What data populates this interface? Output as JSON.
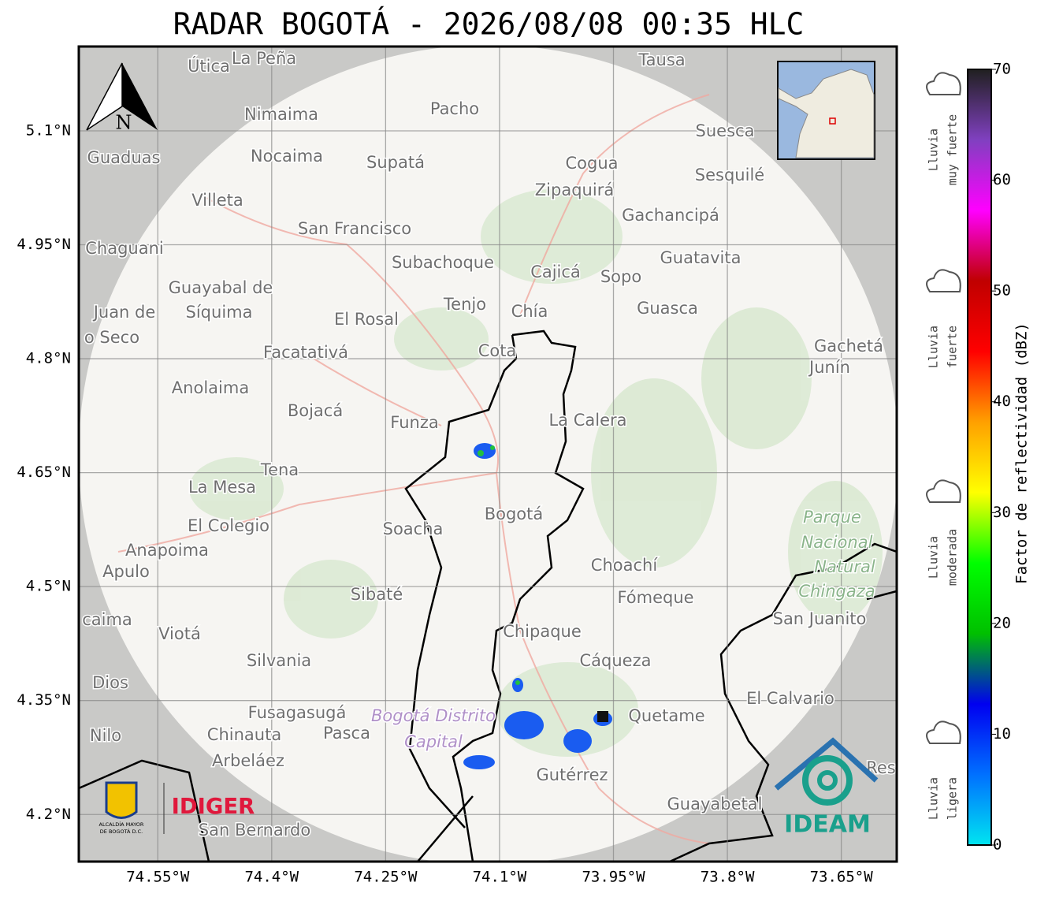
{
  "title": "RADAR BOGOTÁ - 2026/08/08 00:35 HLC",
  "map": {
    "lon_range": [
      -74.654,
      -73.577
    ],
    "lat_range": [
      4.138,
      5.211
    ],
    "lon_ticks": [
      {
        "value": -74.55,
        "label": "74.55°W"
      },
      {
        "value": -74.4,
        "label": "74.4°W"
      },
      {
        "value": -74.25,
        "label": "74.25°W"
      },
      {
        "value": -74.1,
        "label": "74.1°W"
      },
      {
        "value": -73.95,
        "label": "73.95°W"
      },
      {
        "value": -73.8,
        "label": "73.8°W"
      },
      {
        "value": -73.65,
        "label": "73.65°W"
      }
    ],
    "lat_ticks": [
      {
        "value": 5.1,
        "label": "5.1°N"
      },
      {
        "value": 4.95,
        "label": "4.95°N"
      },
      {
        "value": 4.8,
        "label": "4.8°N"
      },
      {
        "value": 4.65,
        "label": "4.65°N"
      },
      {
        "value": 4.5,
        "label": "4.5°N"
      },
      {
        "value": 4.35,
        "label": "4.35°N"
      },
      {
        "value": 4.2,
        "label": "4.2°N"
      }
    ],
    "north": "N",
    "places": [
      "Útica",
      "La Peña",
      "Tausa",
      "Pacho",
      "Nimaima",
      "Guaduas",
      "Nocaima",
      "Supatá",
      "Cogua",
      "Suesca",
      "Zipaquirá",
      "Sesquilé",
      "Villeta",
      "Gachancipá",
      "San Francisco",
      "Chaguani",
      "Guatavita",
      "Subachoque",
      "Cajicá",
      "Sopo",
      "Guayabal de",
      "Síquima",
      "Juan de",
      "o Seco",
      "Tenjo",
      "Chía",
      "Guasca",
      "El Rosal",
      "Facatativá",
      "Cota",
      "Gachetá",
      "Junín",
      "Anolaima",
      "Bojacá",
      "Funza",
      "La Calera",
      "Tena",
      "La Mesa",
      "El Colegio",
      "Soacha",
      "Anapoima",
      "Apulo",
      "Choachí",
      "Sibaté",
      "Fómeque",
      "San Juanito",
      "caima",
      "Viotá",
      "Chipaque",
      "Silvania",
      "Cáqueza",
      "Dios",
      "El Calvario",
      "Fusagasugá",
      "Quetame",
      "Nilo",
      "Chinauta",
      "Pasca",
      "Arbeláez",
      "Gutérrez",
      "Res",
      "Guayabetal",
      "San Bernardo",
      "Bogotá"
    ],
    "parks": [
      "Parque",
      "Nacional",
      "Natural",
      "Chingaza",
      "Bogotá Distrito",
      "Capital"
    ]
  },
  "logos": {
    "alcaldia": [
      "ALCALDÍA MAYOR",
      "DE BOGOTÁ D.C."
    ],
    "idiger": "IDIGER",
    "ideam": "IDEAM"
  },
  "colorbar": {
    "range": [
      0,
      70
    ],
    "ticks": [
      0,
      10,
      20,
      30,
      40,
      50,
      60,
      70
    ],
    "label": "Factor de reflectividad (dBZ)",
    "colors": [
      "#00e5f0",
      "#0070ff",
      "#0000f0",
      "#00c000",
      "#00ff00",
      "#ffff00",
      "#ffa000",
      "#ff0000",
      "#c00000",
      "#ff00ff",
      "#8040c0",
      "#202020"
    ]
  },
  "rain_levels": [
    [
      "Lluvia",
      "muy fuerte"
    ],
    [
      "Lluvia",
      "fuerte"
    ],
    [
      "Lluvia",
      "moderada"
    ],
    [
      "Lluvia",
      "ligera"
    ]
  ]
}
